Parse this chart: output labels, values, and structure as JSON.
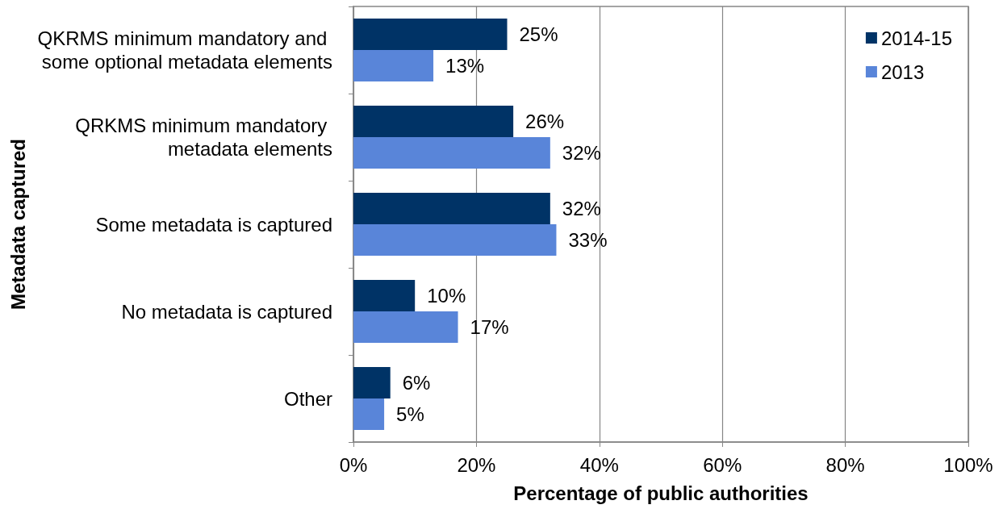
{
  "chart_data": {
    "type": "bar",
    "orientation": "horizontal",
    "xlabel": "Percentage of public authorities",
    "ylabel": "Metadata captured",
    "categories": [
      "QKRMS minimum mandatory and some optional metadata elements",
      "QRKMS minimum mandatory metadata elements",
      "Some metadata is captured",
      "No metadata is captured",
      "Other"
    ],
    "series": [
      {
        "name": "2014-15",
        "color": "#003366",
        "values": [
          25,
          26,
          32,
          10,
          6
        ],
        "value_labels": [
          "25%",
          "26%",
          "32%",
          "10%",
          "6%"
        ]
      },
      {
        "name": "2013",
        "color": "#5985d9",
        "values": [
          13,
          32,
          33,
          17,
          5
        ],
        "value_labels": [
          "13%",
          "32%",
          "33%",
          "17%",
          "5%"
        ]
      }
    ],
    "xlim": [
      0,
      100
    ],
    "xticks": [
      {
        "value": 0,
        "label": "0%"
      },
      {
        "value": 20,
        "label": "20%"
      },
      {
        "value": 40,
        "label": "40%"
      },
      {
        "value": 60,
        "label": "60%"
      },
      {
        "value": 80,
        "label": "80%"
      },
      {
        "value": 100,
        "label": "100%"
      }
    ],
    "grid": "x",
    "legend": "top right"
  }
}
